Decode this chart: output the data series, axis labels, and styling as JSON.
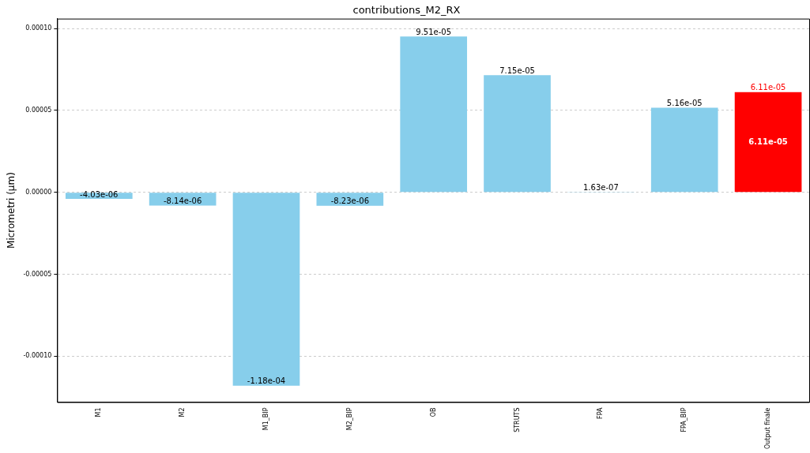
{
  "chart_data": {
    "type": "bar",
    "title": "contributions_M2_RX",
    "ylabel": "Micrometri (µm)",
    "categories": [
      "M1",
      "M2",
      "M1_BIP",
      "M2_BIP",
      "OB",
      "STRUTS",
      "FPA",
      "FPA_BIP",
      "Output finale"
    ],
    "values": [
      -4.03e-06,
      -8.14e-06,
      -0.000118,
      -8.23e-06,
      9.51e-05,
      7.15e-05,
      1.63e-07,
      5.16e-05,
      6.11e-05
    ],
    "value_labels": [
      "-4.03e-06",
      "-8.14e-06",
      "-1.18e-04",
      "-8.23e-06",
      "9.51e-05",
      "7.15e-05",
      "1.63e-07",
      "5.16e-05",
      "6.11e-05"
    ],
    "color": "#87ceeb",
    "colors": [
      "#87ceeb",
      "#87ceeb",
      "#87ceeb",
      "#87ceeb",
      "#87ceeb",
      "#87ceeb",
      "#87ceeb",
      "#87ceeb",
      "#ff0000"
    ],
    "ylim": [
      -0.000128,
      0.000106
    ],
    "yticks": [
      {
        "value": -0.0001,
        "label": "-0.00010"
      },
      {
        "value": -5e-05,
        "label": "-0.00005"
      },
      {
        "value": 0,
        "label": "0.00000"
      },
      {
        "value": 5e-05,
        "label": "0.00005"
      },
      {
        "value": 0.0001,
        "label": "0.00010"
      }
    ],
    "grid": "y",
    "legend": false,
    "annotations": [
      "6.11e-05"
    ]
  }
}
